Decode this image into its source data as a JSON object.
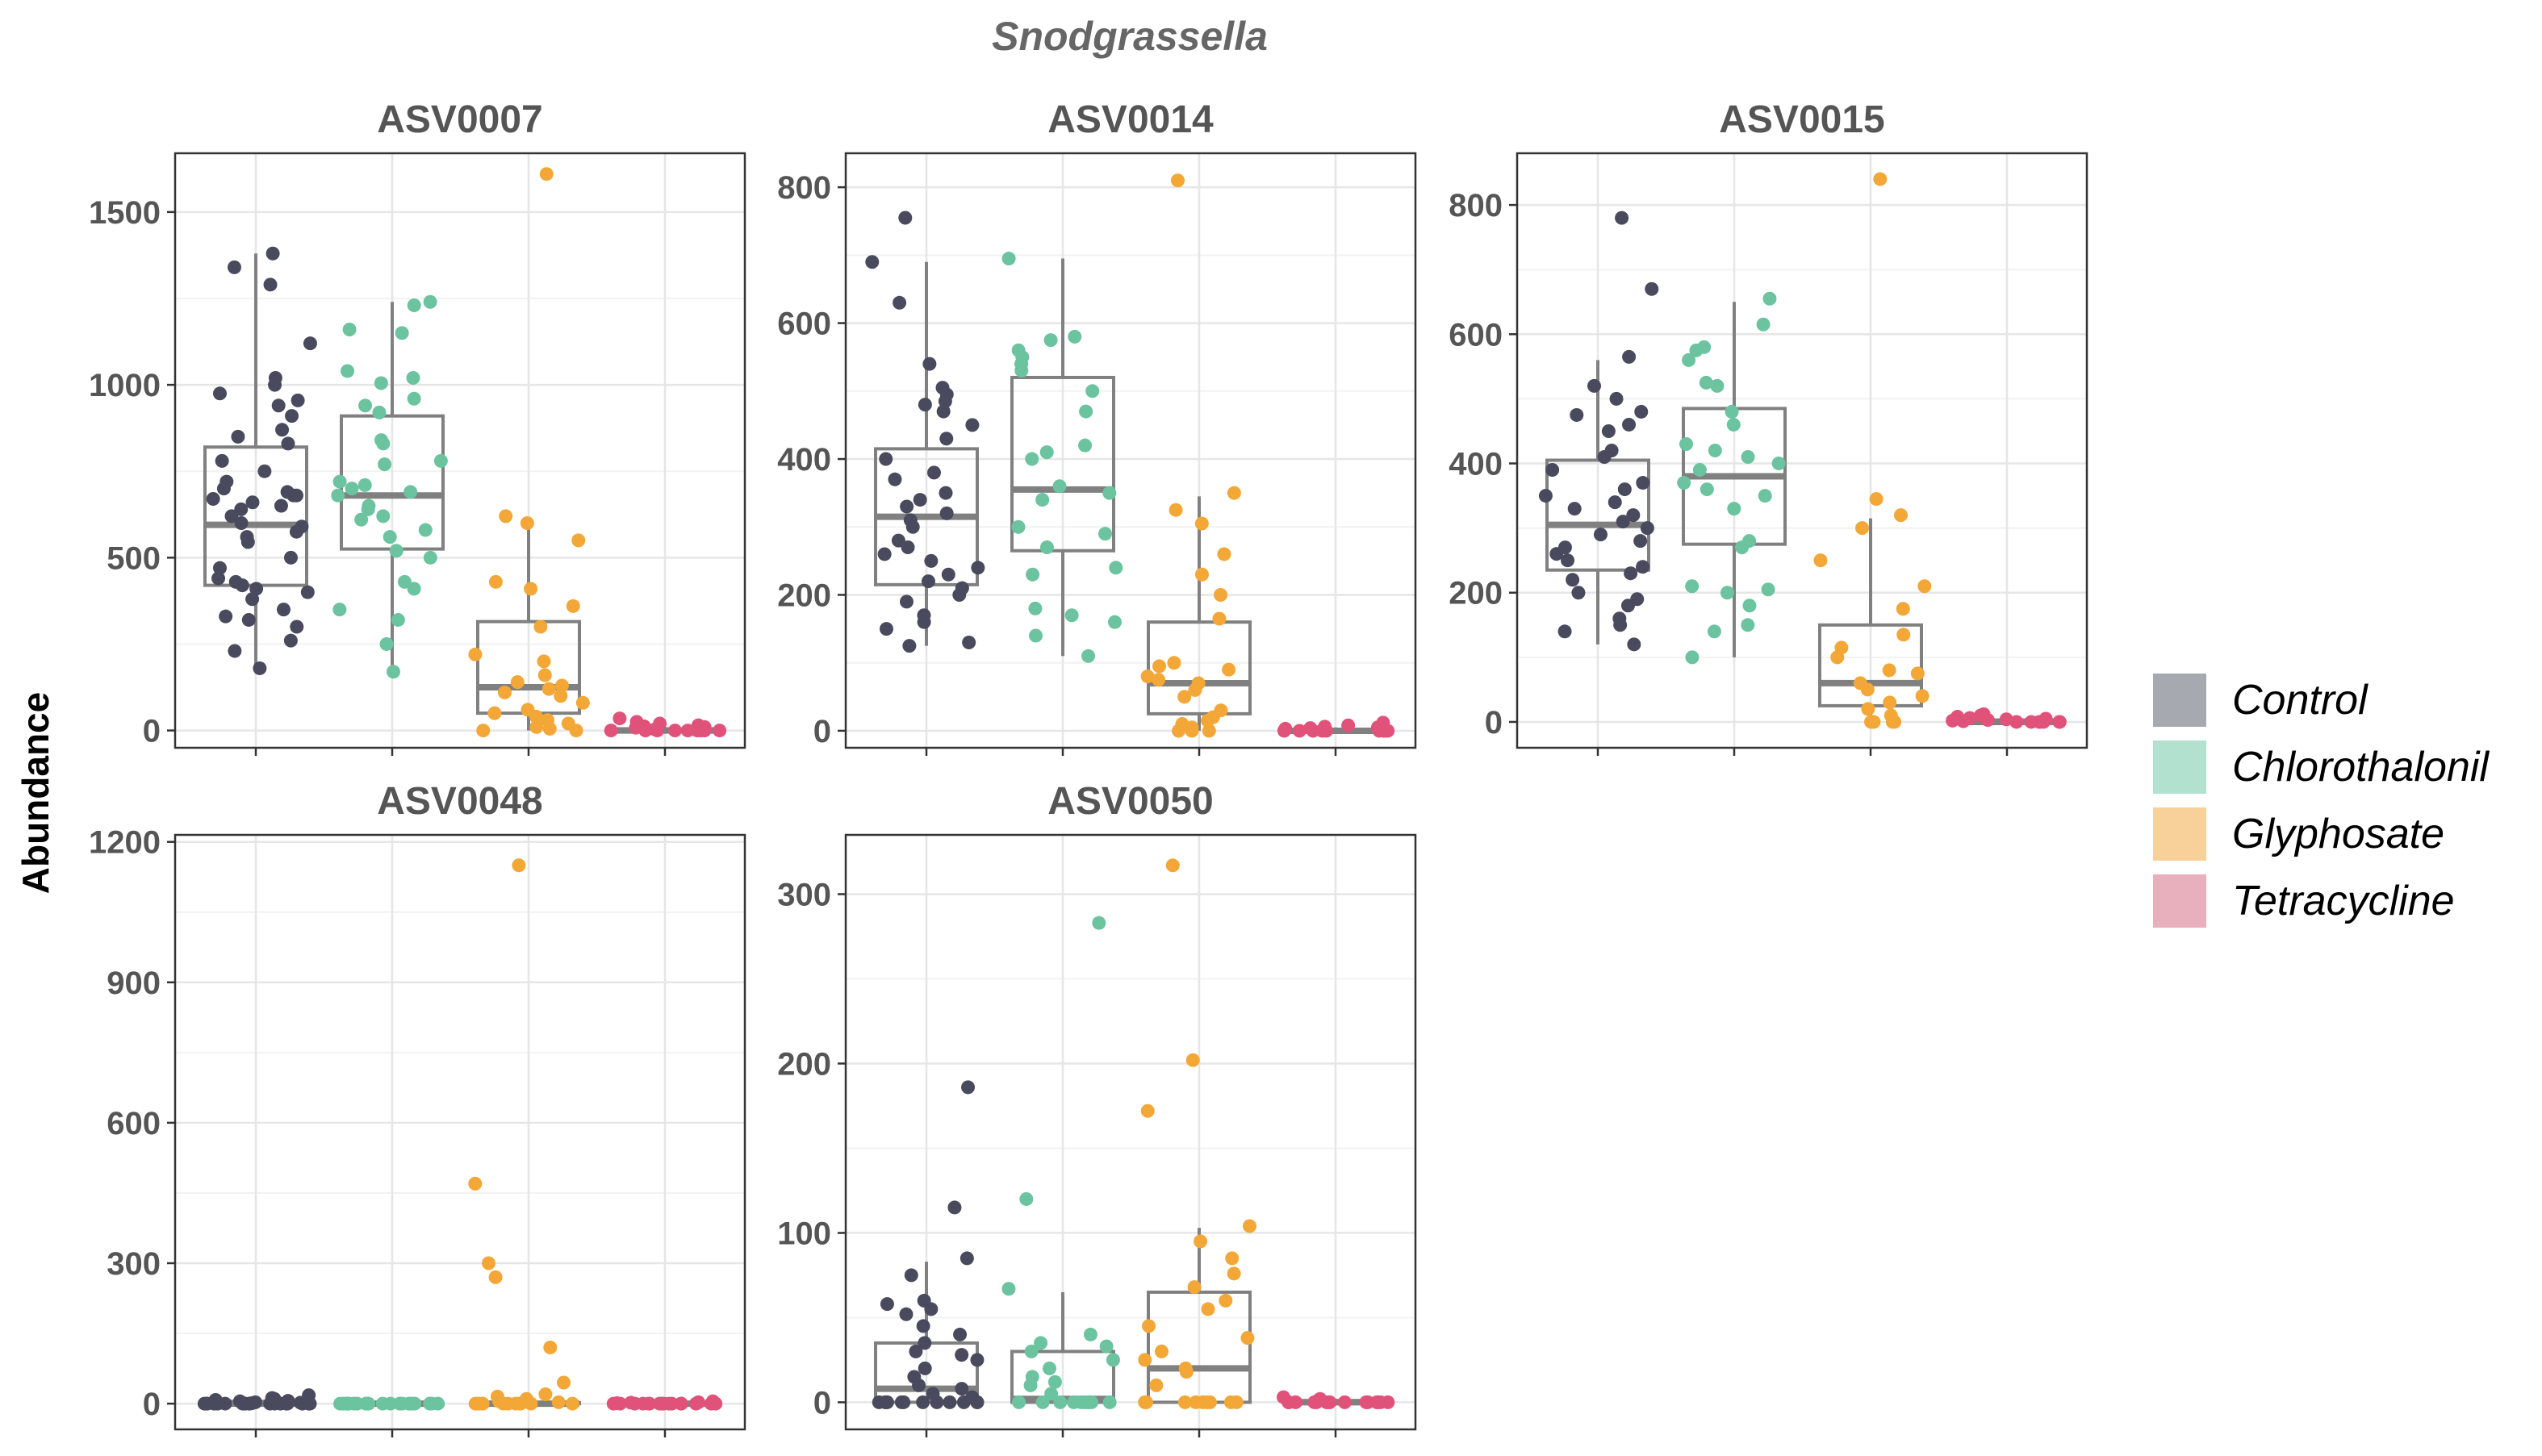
{
  "chart_data": {
    "type": "box",
    "title": "Snodgrassella",
    "ylabel": "Abundance",
    "xlabel": "",
    "categories": [
      "Control",
      "Chlorothalonil",
      "Glyphosate",
      "Tetracycline"
    ],
    "colors": {
      "Control": "#4a4a5e",
      "Chlorothalonil": "#6cc3a0",
      "Glyphosate": "#f2a737",
      "Tetracycline": "#e0527a"
    },
    "legend_key_colors": {
      "Control": "#a7a9b0",
      "Chlorothalonil": "#b2e1cf",
      "Glyphosate": "#f8d19a",
      "Tetracycline": "#e8b0bc"
    },
    "box_color": "#808080",
    "legend_position": "right",
    "grid": true,
    "panels": [
      {
        "name": "ASV0007",
        "ylim": [
          -50,
          1670
        ],
        "yticks": [
          0,
          500,
          1000,
          1500
        ],
        "groups": [
          {
            "box": {
              "q1": 420,
              "median": 595,
              "q3": 820,
              "whisker_low": 180,
              "whisker_high": 1380
            },
            "points": [
              1380,
              1340,
              1290,
              1120,
              1020,
              1000,
              975,
              955,
              940,
              910,
              870,
              850,
              830,
              780,
              750,
              720,
              700,
              690,
              680,
              680,
              670,
              660,
              650,
              640,
              620,
              600,
              590,
              575,
              560,
              545,
              500,
              470,
              440,
              430,
              420,
              410,
              400,
              380,
              350,
              330,
              320,
              300,
              260,
              230,
              180
            ]
          },
          {
            "box": {
              "q1": 525,
              "median": 680,
              "q3": 910,
              "whisker_low": 170,
              "whisker_high": 1240
            },
            "points": [
              1240,
              1230,
              1160,
              1150,
              1040,
              1020,
              1005,
              960,
              940,
              920,
              840,
              830,
              780,
              770,
              720,
              710,
              700,
              690,
              680,
              650,
              640,
              620,
              610,
              580,
              560,
              520,
              500,
              430,
              410,
              350,
              320,
              250,
              170
            ]
          },
          {
            "box": {
              "q1": 50,
              "median": 125,
              "q3": 315,
              "whisker_low": 0,
              "whisker_high": 615
            },
            "points": [
              1610,
              620,
              600,
              550,
              430,
              410,
              360,
              300,
              220,
              200,
              160,
              140,
              130,
              120,
              110,
              100,
              80,
              60,
              50,
              40,
              30,
              20,
              10,
              5,
              0,
              0
            ]
          },
          {
            "box": {
              "q1": 0,
              "median": 0,
              "q3": 5,
              "whisker_low": 0,
              "whisker_high": 10
            },
            "points": [
              35,
              25,
              20,
              15,
              12,
              10,
              8,
              5,
              3,
              0,
              0,
              0,
              0,
              0,
              0,
              0,
              0,
              0
            ]
          }
        ]
      },
      {
        "name": "ASV0014",
        "ylim": [
          -25,
          850
        ],
        "yticks": [
          0,
          200,
          400,
          600,
          800
        ],
        "groups": [
          {
            "box": {
              "q1": 215,
              "median": 315,
              "q3": 415,
              "whisker_low": 125,
              "whisker_high": 690
            },
            "points": [
              755,
              690,
              630,
              540,
              505,
              495,
              485,
              480,
              470,
              450,
              430,
              400,
              380,
              370,
              350,
              340,
              330,
              320,
              310,
              300,
              280,
              270,
              260,
              250,
              240,
              230,
              220,
              210,
              200,
              190,
              170,
              160,
              150,
              130,
              125
            ]
          },
          {
            "box": {
              "q1": 265,
              "median": 355,
              "q3": 520,
              "whisker_low": 110,
              "whisker_high": 695
            },
            "points": [
              695,
              580,
              575,
              560,
              550,
              540,
              530,
              500,
              470,
              420,
              410,
              400,
              360,
              350,
              340,
              300,
              290,
              270,
              240,
              230,
              180,
              170,
              160,
              140,
              110
            ]
          },
          {
            "box": {
              "q1": 25,
              "median": 70,
              "q3": 160,
              "whisker_low": 0,
              "whisker_high": 345
            },
            "points": [
              810,
              350,
              325,
              305,
              260,
              230,
              200,
              165,
              100,
              95,
              90,
              80,
              75,
              70,
              60,
              50,
              30,
              20,
              15,
              10,
              5,
              0,
              0,
              0
            ]
          },
          {
            "box": {
              "q1": 0,
              "median": 0,
              "q3": 2,
              "whisker_low": 0,
              "whisker_high": 5
            },
            "points": [
              12,
              10,
              8,
              6,
              5,
              4,
              3,
              2,
              1,
              0,
              0,
              0,
              0,
              0,
              0,
              0,
              0,
              0
            ]
          }
        ]
      },
      {
        "name": "ASV0015",
        "ylim": [
          -40,
          880
        ],
        "yticks": [
          0,
          200,
          400,
          600,
          800
        ],
        "groups": [
          {
            "box": {
              "q1": 235,
              "median": 305,
              "q3": 405,
              "whisker_low": 120,
              "whisker_high": 560
            },
            "points": [
              780,
              670,
              565,
              520,
              500,
              480,
              475,
              460,
              450,
              420,
              410,
              390,
              370,
              360,
              350,
              340,
              330,
              320,
              310,
              300,
              290,
              280,
              270,
              260,
              250,
              240,
              230,
              220,
              200,
              190,
              180,
              160,
              150,
              140,
              120
            ]
          },
          {
            "box": {
              "q1": 275,
              "median": 380,
              "q3": 485,
              "whisker_low": 100,
              "whisker_high": 650
            },
            "points": [
              655,
              615,
              580,
              575,
              560,
              525,
              520,
              480,
              460,
              430,
              420,
              410,
              400,
              390,
              370,
              360,
              350,
              330,
              280,
              270,
              210,
              205,
              200,
              180,
              150,
              140,
              100
            ]
          },
          {
            "box": {
              "q1": 25,
              "median": 60,
              "q3": 150,
              "whisker_low": 0,
              "whisker_high": 315
            },
            "points": [
              840,
              345,
              320,
              300,
              250,
              210,
              175,
              135,
              115,
              100,
              80,
              75,
              60,
              50,
              40,
              30,
              20,
              10,
              0,
              0,
              0,
              0
            ]
          },
          {
            "box": {
              "q1": 0,
              "median": 0,
              "q3": 3,
              "whisker_low": 0,
              "whisker_high": 6
            },
            "points": [
              12,
              10,
              8,
              6,
              5,
              4,
              3,
              2,
              1,
              0,
              0,
              0,
              0,
              0,
              0,
              0
            ]
          }
        ]
      },
      {
        "name": "ASV0048",
        "ylim": [
          -55,
          1215
        ],
        "yticks": [
          0,
          300,
          600,
          900,
          1200
        ],
        "groups": [
          {
            "box": {
              "q1": 0,
              "median": 0,
              "q3": 5,
              "whisker_low": 0,
              "whisker_high": 12
            },
            "points": [
              18,
              12,
              10,
              8,
              6,
              5,
              4,
              3,
              2,
              1,
              0,
              0,
              0,
              0,
              0,
              0,
              0,
              0,
              0,
              0,
              0,
              0,
              0,
              0,
              0,
              0,
              0,
              0
            ]
          },
          {
            "box": {
              "q1": 0,
              "median": 0,
              "q3": 0,
              "whisker_low": 0,
              "whisker_high": 0
            },
            "points": [
              0,
              0,
              0,
              0,
              0,
              0,
              0,
              0,
              0,
              0,
              0,
              0,
              0,
              0,
              0,
              0,
              0,
              0,
              0,
              0,
              0,
              0,
              0,
              0,
              0
            ]
          },
          {
            "box": {
              "q1": 0,
              "median": 0,
              "q3": 2,
              "whisker_low": 0,
              "whisker_high": 5
            },
            "points": [
              1150,
              470,
              300,
              270,
              120,
              45,
              20,
              15,
              10,
              5,
              3,
              0,
              0,
              0,
              0,
              0,
              0,
              0,
              0,
              0,
              0,
              0
            ]
          },
          {
            "box": {
              "q1": 0,
              "median": 0,
              "q3": 1,
              "whisker_low": 0,
              "whisker_high": 3
            },
            "points": [
              5,
              3,
              2,
              1,
              0,
              0,
              0,
              0,
              0,
              0,
              0,
              0,
              0,
              0,
              0,
              0,
              0,
              0,
              0,
              0
            ]
          }
        ]
      },
      {
        "name": "ASV0050",
        "ylim": [
          -16,
          335
        ],
        "yticks": [
          0,
          100,
          200,
          300
        ],
        "groups": [
          {
            "box": {
              "q1": 0,
              "median": 8,
              "q3": 35,
              "whisker_low": 0,
              "whisker_high": 83
            },
            "points": [
              186,
              115,
              85,
              75,
              60,
              58,
              55,
              52,
              45,
              40,
              35,
              30,
              28,
              25,
              20,
              15,
              10,
              8,
              5,
              3,
              0,
              0,
              0,
              0,
              0,
              0,
              0,
              0,
              0,
              0,
              0,
              0
            ]
          },
          {
            "box": {
              "q1": 0,
              "median": 2,
              "q3": 30,
              "whisker_low": 0,
              "whisker_high": 65
            },
            "points": [
              283,
              120,
              67,
              40,
              35,
              33,
              30,
              25,
              20,
              15,
              12,
              10,
              5,
              0,
              0,
              0,
              0,
              0,
              0,
              0,
              0,
              0,
              0,
              0
            ]
          },
          {
            "box": {
              "q1": 0,
              "median": 20,
              "q3": 65,
              "whisker_low": 0,
              "whisker_high": 103
            },
            "points": [
              317,
              202,
              172,
              104,
              95,
              85,
              76,
              68,
              60,
              55,
              45,
              38,
              30,
              25,
              20,
              18,
              10,
              0,
              0,
              0,
              0,
              0,
              0,
              0,
              0,
              0
            ]
          },
          {
            "box": {
              "q1": 0,
              "median": 0,
              "q3": 1,
              "whisker_low": 0,
              "whisker_high": 2
            },
            "points": [
              3,
              2,
              1,
              0,
              0,
              0,
              0,
              0,
              0,
              0,
              0,
              0,
              0,
              0,
              0,
              0,
              0,
              0
            ]
          }
        ]
      }
    ]
  }
}
